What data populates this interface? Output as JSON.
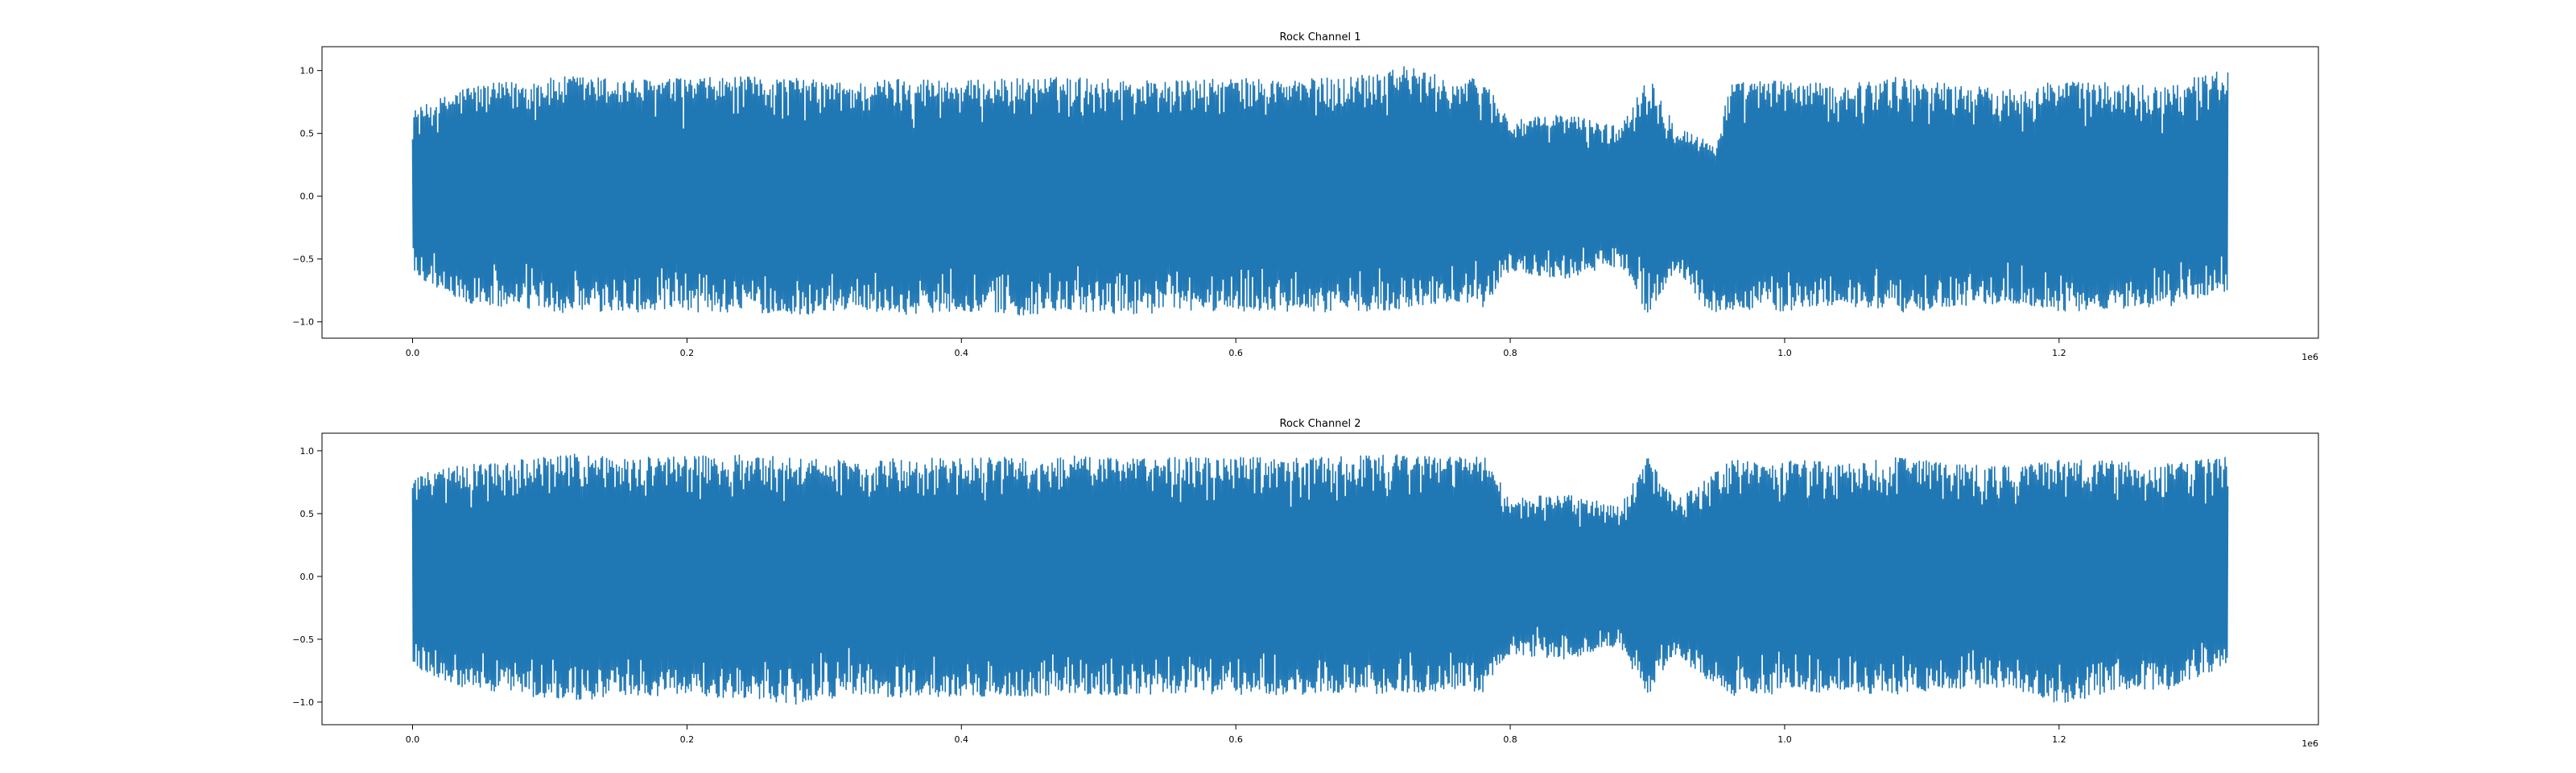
{
  "chart_data": [
    {
      "type": "line",
      "title": "Rock Channel 1",
      "xlabel": "",
      "ylabel": "",
      "x_offset_label": "1e6",
      "xlim": [
        -0.066,
        1.389
      ],
      "ylim": [
        -1.13,
        1.19
      ],
      "x_ticks": [
        0.0,
        0.2,
        0.4,
        0.6,
        0.8,
        1.0,
        1.2
      ],
      "x_tick_labels": [
        "0.0",
        "0.2",
        "0.4",
        "0.6",
        "0.8",
        "1.0",
        "1.2"
      ],
      "y_ticks": [
        1.0,
        0.5,
        0.0,
        -0.5,
        -1.0
      ],
      "y_tick_labels": [
        "1.0",
        "0.5",
        "0.0",
        "−0.5",
        "−1.0"
      ],
      "x_range": [
        0.0,
        1.323
      ],
      "grid": false,
      "series": [
        {
          "color": "#1f77b4",
          "envelope": {
            "x": [
              0.0,
              0.04,
              0.08,
              0.12,
              0.16,
              0.2,
              0.24,
              0.28,
              0.32,
              0.36,
              0.4,
              0.44,
              0.48,
              0.52,
              0.56,
              0.6,
              0.64,
              0.68,
              0.72,
              0.76,
              0.78,
              0.8,
              0.84,
              0.88,
              0.9,
              0.92,
              0.95,
              0.96,
              1.0,
              1.04,
              1.08,
              1.12,
              1.16,
              1.2,
              1.24,
              1.28,
              1.323
            ],
            "upper": [
              0.68,
              0.88,
              0.92,
              0.96,
              0.93,
              0.94,
              0.95,
              0.94,
              0.9,
              0.95,
              0.92,
              0.94,
              0.95,
              0.93,
              0.92,
              0.94,
              0.93,
              0.95,
              1.05,
              0.92,
              0.95,
              0.6,
              0.66,
              0.55,
              0.98,
              0.58,
              0.4,
              0.9,
              0.93,
              0.88,
              0.95,
              0.9,
              0.85,
              0.92,
              0.9,
              0.88,
              1.03
            ],
            "lower": [
              -0.62,
              -0.86,
              -0.9,
              -0.94,
              -0.92,
              -0.93,
              -0.92,
              -0.95,
              -0.9,
              -0.94,
              -0.91,
              -0.95,
              -0.93,
              -0.94,
              -0.92,
              -0.91,
              -0.93,
              -0.92,
              -0.9,
              -0.83,
              -0.88,
              -0.6,
              -0.66,
              -0.55,
              -0.94,
              -0.6,
              -0.98,
              -0.9,
              -0.92,
              -0.86,
              -0.94,
              -0.88,
              -0.85,
              -0.92,
              -0.9,
              -0.88,
              -0.75
            ]
          }
        }
      ]
    },
    {
      "type": "line",
      "title": "Rock Channel 2",
      "xlabel": "",
      "ylabel": "",
      "x_offset_label": "1e6",
      "xlim": [
        -0.066,
        1.389
      ],
      "ylim": [
        -1.18,
        1.14
      ],
      "x_ticks": [
        0.0,
        0.2,
        0.4,
        0.6,
        0.8,
        1.0,
        1.2
      ],
      "x_tick_labels": [
        "0.0",
        "0.2",
        "0.4",
        "0.6",
        "0.8",
        "1.0",
        "1.2"
      ],
      "y_ticks": [
        1.0,
        0.5,
        0.0,
        -0.5,
        -1.0
      ],
      "y_tick_labels": [
        "1.0",
        "0.5",
        "0.0",
        "−0.5",
        "−1.0"
      ],
      "x_range": [
        0.0,
        1.323
      ],
      "grid": false,
      "series": [
        {
          "color": "#1f77b4",
          "envelope": {
            "x": [
              0.0,
              0.04,
              0.08,
              0.12,
              0.16,
              0.2,
              0.24,
              0.28,
              0.32,
              0.36,
              0.4,
              0.44,
              0.48,
              0.52,
              0.56,
              0.6,
              0.64,
              0.68,
              0.72,
              0.76,
              0.78,
              0.8,
              0.84,
              0.88,
              0.9,
              0.92,
              0.96,
              1.0,
              1.04,
              1.08,
              1.12,
              1.16,
              1.2,
              1.24,
              1.28,
              1.323
            ],
            "upper": [
              0.8,
              0.9,
              0.93,
              0.98,
              0.95,
              0.96,
              0.97,
              0.95,
              0.92,
              0.96,
              0.94,
              0.95,
              0.96,
              0.94,
              0.95,
              0.95,
              0.94,
              0.96,
              0.97,
              0.95,
              0.97,
              0.62,
              0.66,
              0.56,
              0.95,
              0.6,
              0.93,
              0.94,
              0.9,
              0.95,
              0.9,
              0.88,
              0.94,
              0.92,
              0.9,
              0.95
            ],
            "lower": [
              -0.72,
              -0.9,
              -0.95,
              -0.98,
              -0.96,
              -0.95,
              -0.97,
              -1.02,
              -0.94,
              -0.97,
              -0.95,
              -0.96,
              -0.94,
              -0.95,
              -0.93,
              -0.94,
              -0.95,
              -0.92,
              -0.94,
              -0.9,
              -0.92,
              -0.62,
              -0.66,
              -0.56,
              -0.95,
              -0.62,
              -0.96,
              -0.94,
              -0.92,
              -0.94,
              -0.9,
              -0.88,
              -1.02,
              -0.92,
              -0.9,
              -0.7
            ]
          }
        }
      ]
    }
  ]
}
